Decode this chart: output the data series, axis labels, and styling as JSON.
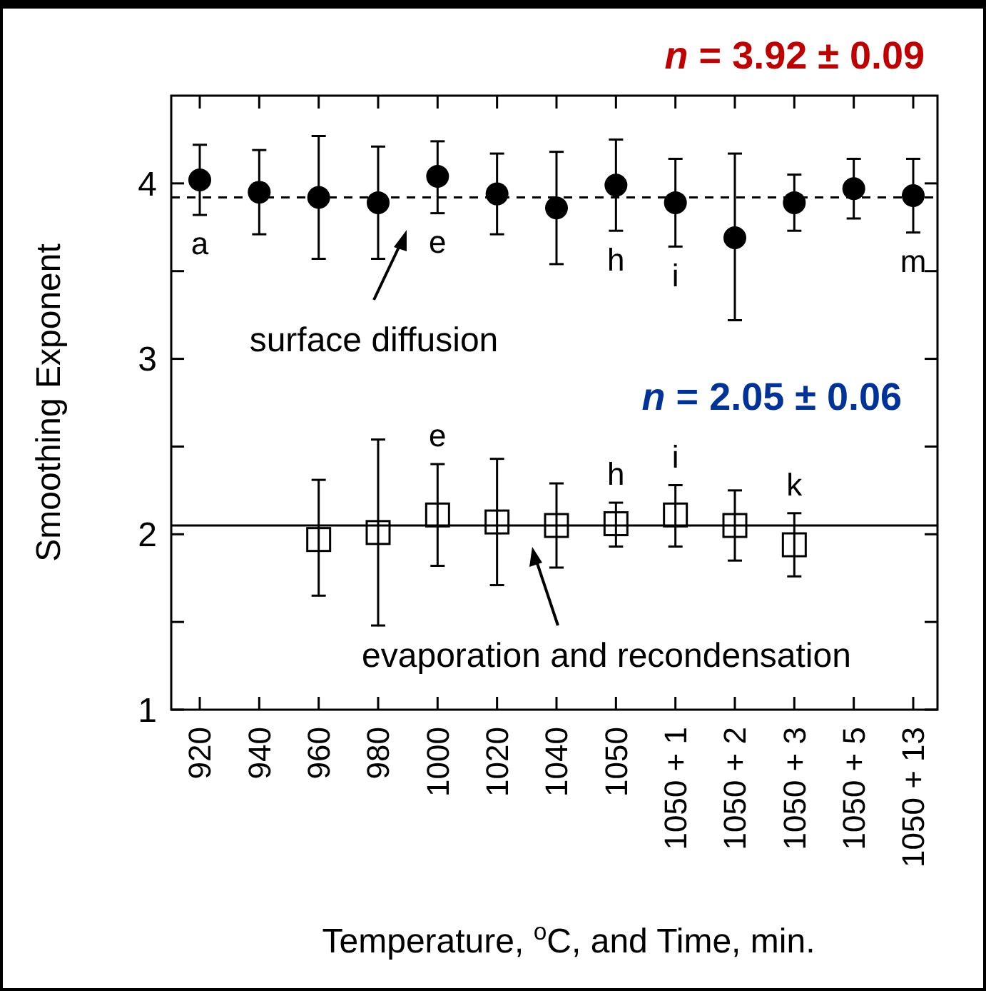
{
  "chart_data": {
    "type": "scatter",
    "xlabel": "Temperature, $^{o}$C, and Time, min.",
    "ylabel": "Smoothing Exponent",
    "categories": [
      "920",
      "940",
      "960",
      "980",
      "1000",
      "1020",
      "1040",
      "1050",
      "1050 + 1",
      "1050 + 2",
      "1050 + 3",
      "1050 + 5",
      "1050 + 13"
    ],
    "ylim": [
      1,
      4.5
    ],
    "yticks": [
      1,
      {
        "value": 1.5,
        "label": null
      },
      2,
      {
        "value": 2.5,
        "label": null
      },
      3,
      {
        "value": 3.5,
        "label": null
      },
      4
    ],
    "series": [
      {
        "color": "#000000",
        "marker": "circle",
        "values": [
          4.02,
          3.95,
          3.92,
          3.89,
          4.04,
          3.94,
          3.86,
          3.99,
          3.89,
          3.69,
          3.89,
          3.97,
          3.93
        ],
        "errors": [
          [
            3.82,
            4.22
          ],
          [
            3.71,
            4.19
          ],
          [
            3.57,
            4.27
          ],
          [
            3.57,
            4.21
          ],
          [
            3.83,
            4.24
          ],
          [
            3.71,
            4.17
          ],
          [
            3.54,
            4.18
          ],
          [
            3.73,
            4.25
          ],
          [
            3.64,
            4.14
          ],
          [
            3.22,
            4.17
          ],
          [
            3.73,
            4.05
          ],
          [
            3.8,
            4.14
          ],
          [
            3.72,
            4.14
          ]
        ]
      },
      {
        "color": "#000000",
        "marker": "square",
        "values": [
          null,
          null,
          1.97,
          2.01,
          2.11,
          2.07,
          2.05,
          2.06,
          2.11,
          2.05,
          1.94,
          null,
          null
        ],
        "errors": [
          null,
          null,
          [
            1.65,
            2.31
          ],
          [
            1.48,
            2.54
          ],
          [
            1.82,
            2.4
          ],
          [
            1.71,
            2.43
          ],
          [
            1.81,
            2.29
          ],
          [
            1.93,
            2.18
          ],
          [
            1.93,
            2.28
          ],
          [
            1.85,
            2.25
          ],
          [
            1.76,
            2.12
          ],
          null,
          null
        ]
      }
    ],
    "ref_lines": [
      {
        "axis": "y",
        "value": 3.92,
        "color": "#000000",
        "line_style": "dashed"
      },
      {
        "axis": "y",
        "value": 2.05,
        "color": "#000000",
        "line_style": "solid"
      }
    ],
    "annotations": [
      {
        "text": "a",
        "x": "920",
        "y": 4.02
      },
      {
        "text": "e",
        "x": "1000",
        "y": 4.04
      },
      {
        "text": "h",
        "x": "1050",
        "y": 3.99
      },
      {
        "text": "i",
        "x": "1050 + 1",
        "y": 3.89
      },
      {
        "text": "m",
        "x": "1050 + 13",
        "y": 3.93
      },
      {
        "text": "e",
        "x": "1000",
        "y": 2.11
      },
      {
        "text": "h",
        "x": "1050",
        "y": 2.06
      },
      {
        "text": "i",
        "x": "1050 + 1",
        "y": 2.11
      },
      {
        "text": "k",
        "x": "1050 + 3",
        "y": 1.94
      },
      "n = 3.92 ± 0.09",
      "n = 2.05 ± 0.06",
      "surface diffusion",
      "evaporation and recondensation"
    ],
    "grid": false
  }
}
